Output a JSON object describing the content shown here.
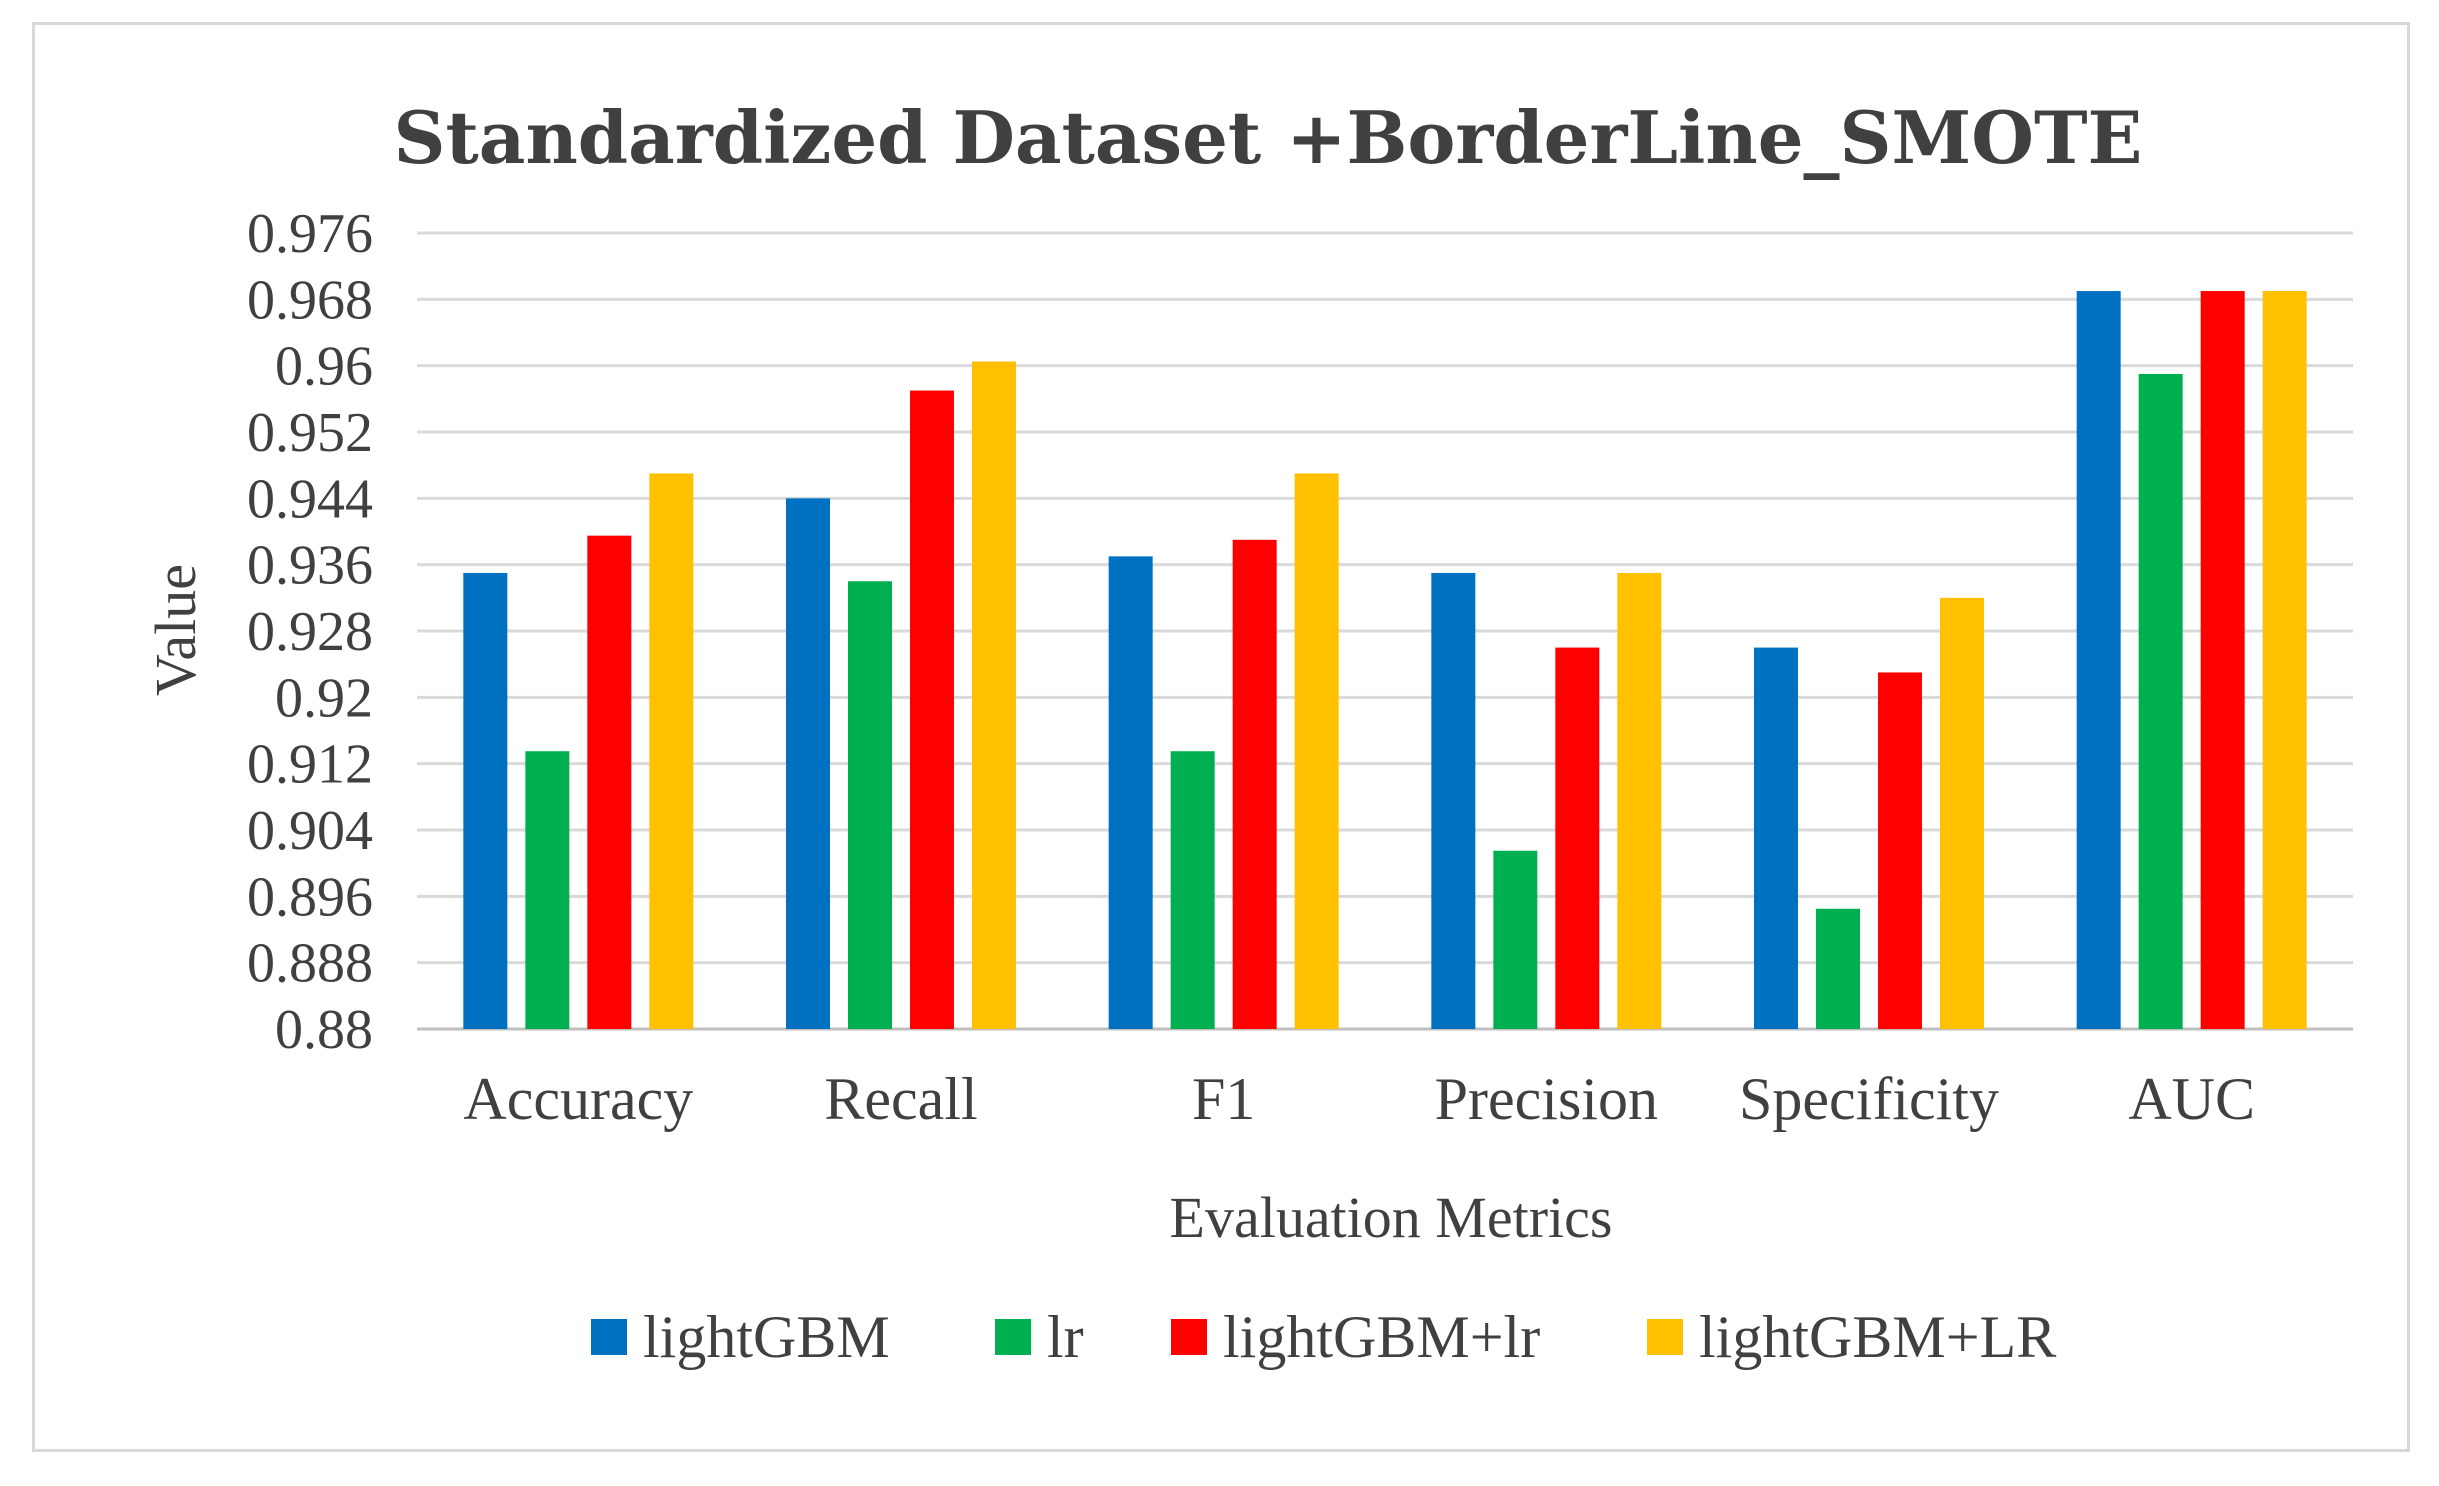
{
  "chart_data": {
    "type": "bar",
    "title": "Standardized Dataset +BorderLine_SMOTE",
    "xlabel": "Evaluation Metrics",
    "ylabel": "Value",
    "ylim": [
      0.88,
      0.976
    ],
    "yticks": [
      "0.976",
      "0.968",
      "0.96",
      "0.952",
      "0.944",
      "0.936",
      "0.928",
      "0.92",
      "0.912",
      "0.904",
      "0.896",
      "0.888",
      "0.88"
    ],
    "ytick_values": [
      0.976,
      0.968,
      0.96,
      0.952,
      0.944,
      0.936,
      0.928,
      0.92,
      0.912,
      0.904,
      0.896,
      0.888,
      0.88
    ],
    "grid": true,
    "legend_position": "bottom",
    "categories": [
      "Accuracy",
      "Recall",
      "F1",
      "Precision",
      "Specificity",
      "AUC"
    ],
    "series": [
      {
        "name": "lightGBM",
        "color": "#0070c0",
        "values": [
          0.935,
          0.944,
          0.937,
          0.935,
          0.926,
          0.969
        ]
      },
      {
        "name": "lr",
        "color": "#00b050",
        "values": [
          0.9135,
          0.934,
          0.9135,
          0.9015,
          0.8945,
          0.959
        ]
      },
      {
        "name": "lightGBM+lr",
        "color": "#ff0000",
        "values": [
          0.9395,
          0.957,
          0.939,
          0.926,
          0.923,
          0.969
        ]
      },
      {
        "name": "lightGBM+LR",
        "color": "#ffc000",
        "values": [
          0.947,
          0.9605,
          0.947,
          0.935,
          0.932,
          0.969
        ]
      }
    ]
  }
}
